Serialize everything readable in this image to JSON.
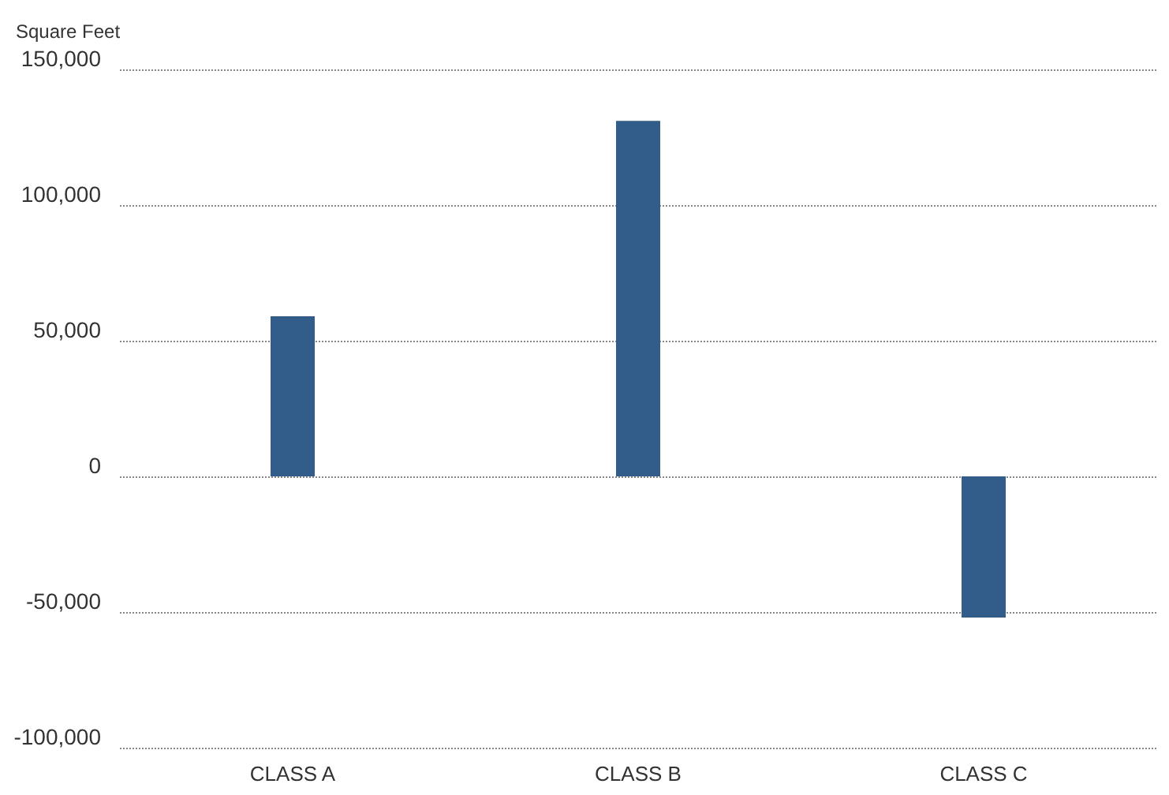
{
  "chart_data": {
    "type": "bar",
    "ylabel": "Square Feet",
    "categories": [
      "CLASS A",
      "CLASS B",
      "CLASS C"
    ],
    "values": [
      59000,
      131000,
      -52000
    ],
    "color": "#325d8a",
    "ylim": [
      -100000,
      150000
    ],
    "yticks": [
      {
        "value": -100000,
        "label": "-100,000"
      },
      {
        "value": -50000,
        "label": "-50,000"
      },
      0,
      {
        "value": 50000,
        "label": "50,000"
      },
      {
        "value": 100000,
        "label": "100,000"
      },
      {
        "value": 150000,
        "label": "150,000"
      }
    ],
    "grid": true
  }
}
